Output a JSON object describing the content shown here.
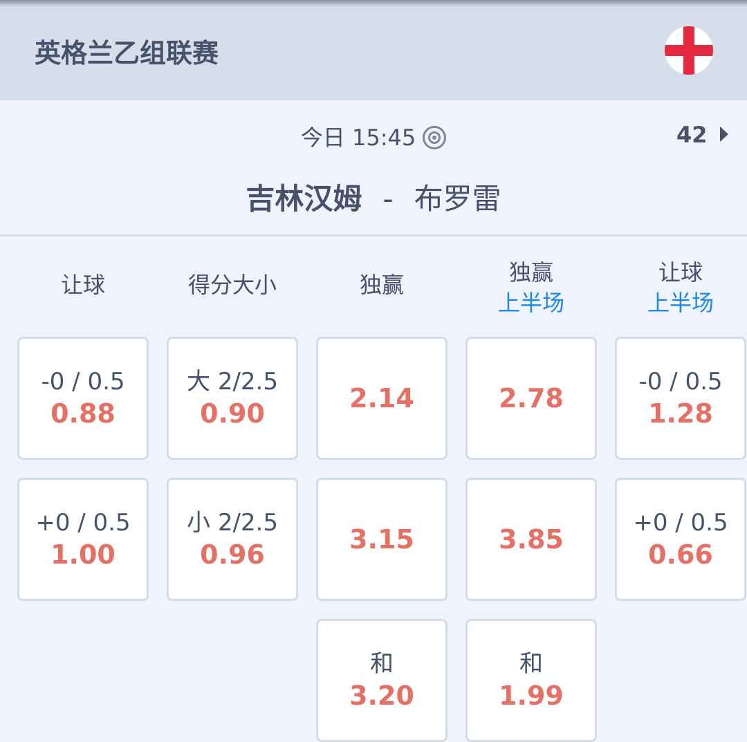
{
  "header": {
    "league": "英格兰乙组联赛",
    "flag_icon": "england-flag"
  },
  "match": {
    "time": "今日 15:45",
    "more_count": "42",
    "home": "吉林汉姆",
    "separator": "-",
    "away": "布罗雷"
  },
  "columns": [
    {
      "title": "让球",
      "sub": ""
    },
    {
      "title": "得分大小",
      "sub": ""
    },
    {
      "title": "独赢",
      "sub": ""
    },
    {
      "title": "独赢",
      "sub": "上半场"
    },
    {
      "title": "让球",
      "sub": "上半场"
    }
  ],
  "cards": [
    [
      {
        "line": "-0 / 0.5",
        "odd": "0.88"
      },
      {
        "line": "+0 / 0.5",
        "odd": "1.00"
      }
    ],
    [
      {
        "line": "大 2/2.5",
        "odd": "0.90"
      },
      {
        "line": "小 2/2.5",
        "odd": "0.96"
      }
    ],
    [
      {
        "line": "",
        "odd": "2.14"
      },
      {
        "line": "",
        "odd": "3.15"
      },
      {
        "line": "和",
        "odd": "3.20"
      }
    ],
    [
      {
        "line": "",
        "odd": "2.78"
      },
      {
        "line": "",
        "odd": "3.85"
      },
      {
        "line": "和",
        "odd": "1.99"
      }
    ],
    [
      {
        "line": "-0 / 0.5",
        "odd": "1.28"
      },
      {
        "line": "+0 / 0.5",
        "odd": "0.66"
      }
    ]
  ],
  "colors": {
    "accent": "#1e88e5",
    "odds": "#e57065",
    "header_bg": "#d7deeb"
  }
}
